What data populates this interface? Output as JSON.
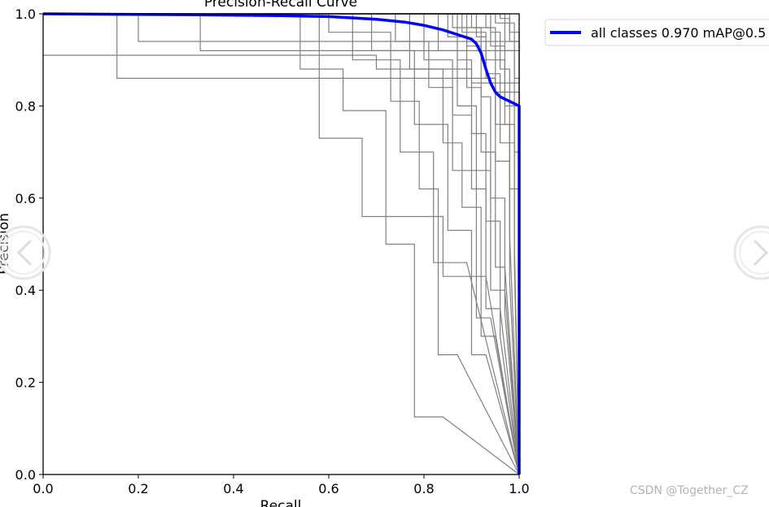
{
  "chart_data": {
    "type": "line",
    "title": "Precision-Recall Curve",
    "xlabel": "Recall",
    "ylabel": "Precision",
    "xlim": [
      0.0,
      1.0
    ],
    "ylim": [
      0.0,
      1.0
    ],
    "xticks": [
      "0.0",
      "0.2",
      "0.4",
      "0.6",
      "0.8",
      "1.0"
    ],
    "yticks": [
      "0.0",
      "0.2",
      "0.4",
      "0.6",
      "0.8",
      "1.0"
    ],
    "grid": false,
    "legend_position": "outside-top-right",
    "series": [
      {
        "name": "all classes 0.970 mAP@0.5",
        "color": "#0000ff",
        "x": [
          0.0,
          0.3,
          0.5,
          0.6,
          0.7,
          0.76,
          0.8,
          0.84,
          0.87,
          0.9,
          0.91,
          0.92,
          0.93,
          0.94,
          0.95,
          0.96,
          0.97,
          0.98,
          0.99,
          1.0,
          1.0
        ],
        "y": [
          1.0,
          0.998,
          0.996,
          0.994,
          0.988,
          0.982,
          0.975,
          0.965,
          0.955,
          0.945,
          0.935,
          0.915,
          0.88,
          0.85,
          0.83,
          0.82,
          0.815,
          0.81,
          0.805,
          0.8,
          0.0
        ]
      }
    ],
    "class_curves": {
      "color": "#808080",
      "curves": [
        {
          "steps": [
            [
              0.0,
              0.91
            ],
            [
              0.7,
              0.91
            ],
            [
              0.7,
              0.88
            ],
            [
              0.9,
              0.88
            ],
            [
              0.9,
              0.85
            ],
            [
              1.0,
              0.85
            ]
          ]
        },
        {
          "steps": [
            [
              0.0,
              1.0
            ],
            [
              0.155,
              1.0
            ],
            [
              0.155,
              0.86
            ],
            [
              0.95,
              0.86
            ],
            [
              0.95,
              0.83
            ],
            [
              1.0,
              0.83
            ]
          ]
        },
        {
          "steps": [
            [
              0.0,
              1.0
            ],
            [
              0.2,
              1.0
            ],
            [
              0.2,
              0.94
            ],
            [
              0.96,
              0.94
            ],
            [
              1.0,
              0.94
            ]
          ]
        },
        {
          "steps": [
            [
              0.0,
              1.0
            ],
            [
              0.33,
              1.0
            ],
            [
              0.33,
              0.92
            ],
            [
              0.97,
              0.92
            ],
            [
              1.0,
              0.92
            ]
          ]
        },
        {
          "steps": [
            [
              0.0,
              1.0
            ],
            [
              0.58,
              1.0
            ],
            [
              0.58,
              0.73
            ],
            [
              0.67,
              0.73
            ],
            [
              0.67,
              0.56
            ],
            [
              0.84,
              0.56
            ],
            [
              0.84,
              0.43
            ],
            [
              0.93,
              0.43
            ],
            [
              1.0,
              0.0
            ]
          ]
        },
        {
          "steps": [
            [
              0.0,
              1.0
            ],
            [
              0.54,
              1.0
            ],
            [
              0.54,
              0.88
            ],
            [
              0.63,
              0.88
            ],
            [
              0.63,
              0.79
            ],
            [
              0.72,
              0.79
            ],
            [
              0.72,
              0.5
            ],
            [
              0.78,
              0.5
            ],
            [
              0.78,
              0.125
            ],
            [
              0.84,
              0.125
            ],
            [
              1.0,
              0.0
            ]
          ]
        },
        {
          "steps": [
            [
              0.0,
              1.0
            ],
            [
              0.6,
              1.0
            ],
            [
              0.6,
              0.96
            ],
            [
              0.73,
              0.96
            ],
            [
              0.73,
              0.81
            ],
            [
              0.79,
              0.81
            ],
            [
              0.79,
              0.62
            ],
            [
              0.83,
              0.62
            ],
            [
              0.83,
              0.26
            ],
            [
              0.87,
              0.26
            ],
            [
              1.0,
              0.0
            ]
          ]
        },
        {
          "steps": [
            [
              0.0,
              1.0
            ],
            [
              0.65,
              1.0
            ],
            [
              0.65,
              0.9
            ],
            [
              0.75,
              0.9
            ],
            [
              0.75,
              0.7
            ],
            [
              0.82,
              0.7
            ],
            [
              0.82,
              0.46
            ],
            [
              0.89,
              0.46
            ],
            [
              1.0,
              0.0
            ]
          ]
        },
        {
          "steps": [
            [
              0.0,
              1.0
            ],
            [
              0.69,
              1.0
            ],
            [
              0.69,
              0.92
            ],
            [
              0.78,
              0.92
            ],
            [
              0.78,
              0.76
            ],
            [
              0.85,
              0.76
            ],
            [
              0.85,
              0.53
            ],
            [
              0.9,
              0.53
            ],
            [
              0.9,
              0.26
            ],
            [
              0.93,
              0.26
            ],
            [
              1.0,
              0.0
            ]
          ]
        },
        {
          "steps": [
            [
              0.0,
              1.0
            ],
            [
              0.74,
              1.0
            ],
            [
              0.74,
              0.94
            ],
            [
              0.81,
              0.94
            ],
            [
              0.81,
              0.84
            ],
            [
              0.86,
              0.84
            ],
            [
              0.86,
              0.66
            ],
            [
              0.91,
              0.66
            ],
            [
              0.91,
              0.34
            ],
            [
              0.94,
              0.34
            ],
            [
              1.0,
              0.0
            ]
          ]
        },
        {
          "steps": [
            [
              0.0,
              1.0
            ],
            [
              0.77,
              1.0
            ],
            [
              0.77,
              0.88
            ],
            [
              0.84,
              0.88
            ],
            [
              0.84,
              0.72
            ],
            [
              0.88,
              0.72
            ],
            [
              0.88,
              0.58
            ],
            [
              0.92,
              0.58
            ],
            [
              0.92,
              0.3
            ],
            [
              0.95,
              0.3
            ],
            [
              1.0,
              0.0
            ]
          ]
        },
        {
          "steps": [
            [
              0.0,
              1.0
            ],
            [
              0.8,
              1.0
            ],
            [
              0.8,
              0.9
            ],
            [
              0.86,
              0.9
            ],
            [
              0.86,
              0.78
            ],
            [
              0.9,
              0.78
            ],
            [
              0.9,
              0.62
            ],
            [
              0.93,
              0.62
            ],
            [
              0.93,
              0.36
            ],
            [
              0.96,
              0.36
            ],
            [
              1.0,
              0.0
            ]
          ]
        },
        {
          "steps": [
            [
              0.0,
              1.0
            ],
            [
              0.83,
              1.0
            ],
            [
              0.83,
              0.92
            ],
            [
              0.87,
              0.92
            ],
            [
              0.87,
              0.8
            ],
            [
              0.91,
              0.8
            ],
            [
              0.91,
              0.66
            ],
            [
              0.94,
              0.66
            ],
            [
              0.94,
              0.4
            ],
            [
              0.97,
              0.4
            ],
            [
              1.0,
              0.0
            ]
          ]
        },
        {
          "steps": [
            [
              0.0,
              1.0
            ],
            [
              0.85,
              1.0
            ],
            [
              0.85,
              0.95
            ],
            [
              0.89,
              0.95
            ],
            [
              0.89,
              0.84
            ],
            [
              0.92,
              0.84
            ],
            [
              0.92,
              0.7
            ],
            [
              0.95,
              0.7
            ],
            [
              0.95,
              0.45
            ],
            [
              0.97,
              0.45
            ],
            [
              1.0,
              0.0
            ]
          ]
        },
        {
          "steps": [
            [
              0.0,
              1.0
            ],
            [
              0.87,
              1.0
            ],
            [
              0.87,
              0.9
            ],
            [
              0.9,
              0.9
            ],
            [
              0.9,
              0.74
            ],
            [
              0.93,
              0.74
            ],
            [
              0.93,
              0.55
            ],
            [
              0.96,
              0.55
            ],
            [
              0.96,
              0.3
            ],
            [
              1.0,
              0.0
            ]
          ]
        },
        {
          "steps": [
            [
              0.0,
              1.0
            ],
            [
              0.89,
              1.0
            ],
            [
              0.89,
              0.93
            ],
            [
              0.92,
              0.93
            ],
            [
              0.92,
              0.82
            ],
            [
              0.94,
              0.82
            ],
            [
              0.94,
              0.6
            ],
            [
              0.97,
              0.6
            ],
            [
              0.97,
              0.35
            ],
            [
              1.0,
              0.0
            ]
          ]
        },
        {
          "steps": [
            [
              0.0,
              1.0
            ],
            [
              0.91,
              1.0
            ],
            [
              0.91,
              0.95
            ],
            [
              0.93,
              0.95
            ],
            [
              0.93,
              0.86
            ],
            [
              0.95,
              0.86
            ],
            [
              0.95,
              0.68
            ],
            [
              0.98,
              0.68
            ],
            [
              0.98,
              0.42
            ],
            [
              1.0,
              0.0
            ]
          ]
        },
        {
          "steps": [
            [
              0.0,
              1.0
            ],
            [
              0.93,
              1.0
            ],
            [
              0.93,
              0.97
            ],
            [
              0.95,
              0.97
            ],
            [
              0.95,
              0.9
            ],
            [
              0.97,
              0.9
            ],
            [
              0.97,
              0.76
            ],
            [
              0.99,
              0.76
            ],
            [
              0.99,
              0.5
            ],
            [
              1.0,
              0.0
            ]
          ]
        },
        {
          "steps": [
            [
              0.0,
              1.0
            ],
            [
              0.94,
              1.0
            ],
            [
              0.94,
              0.96
            ],
            [
              0.96,
              0.96
            ],
            [
              0.96,
              0.88
            ],
            [
              0.98,
              0.88
            ],
            [
              0.98,
              0.62
            ],
            [
              1.0,
              0.62
            ],
            [
              1.0,
              0.0
            ]
          ]
        },
        {
          "steps": [
            [
              0.0,
              1.0
            ],
            [
              0.95,
              1.0
            ],
            [
              0.95,
              0.98
            ],
            [
              0.97,
              0.98
            ],
            [
              0.97,
              0.92
            ],
            [
              0.99,
              0.92
            ],
            [
              0.99,
              0.7
            ],
            [
              1.0,
              0.7
            ],
            [
              1.0,
              0.0
            ]
          ]
        },
        {
          "steps": [
            [
              0.0,
              1.0
            ],
            [
              0.9,
              1.0
            ],
            [
              0.9,
              0.97
            ],
            [
              0.94,
              0.97
            ],
            [
              0.94,
              0.93
            ],
            [
              0.97,
              0.93
            ],
            [
              0.97,
              0.8
            ],
            [
              1.0,
              0.8
            ],
            [
              1.0,
              0.0
            ]
          ]
        },
        {
          "steps": [
            [
              0.0,
              1.0
            ],
            [
              0.88,
              1.0
            ],
            [
              0.88,
              0.96
            ],
            [
              0.93,
              0.96
            ],
            [
              0.93,
              0.87
            ],
            [
              0.96,
              0.87
            ],
            [
              0.96,
              0.72
            ],
            [
              0.99,
              0.72
            ],
            [
              0.99,
              0.46
            ],
            [
              1.0,
              0.0
            ]
          ]
        },
        {
          "steps": [
            [
              0.0,
              1.0
            ],
            [
              0.86,
              1.0
            ],
            [
              0.86,
              0.97
            ],
            [
              0.92,
              0.97
            ],
            [
              0.92,
              0.9
            ],
            [
              0.95,
              0.9
            ],
            [
              0.95,
              0.76
            ],
            [
              0.98,
              0.76
            ],
            [
              0.98,
              0.52
            ],
            [
              1.0,
              0.0
            ]
          ]
        },
        {
          "steps": [
            [
              0.0,
              1.0
            ],
            [
              0.96,
              1.0
            ],
            [
              0.96,
              0.99
            ],
            [
              0.98,
              0.99
            ],
            [
              0.98,
              0.94
            ],
            [
              1.0,
              0.94
            ],
            [
              1.0,
              0.0
            ]
          ]
        },
        {
          "steps": [
            [
              0.0,
              1.0
            ],
            [
              0.97,
              1.0
            ],
            [
              0.97,
              0.98
            ],
            [
              0.99,
              0.98
            ],
            [
              0.99,
              0.86
            ],
            [
              1.0,
              0.86
            ],
            [
              1.0,
              0.0
            ]
          ]
        },
        {
          "steps": [
            [
              0.0,
              1.0
            ],
            [
              0.98,
              1.0
            ],
            [
              0.98,
              0.96
            ],
            [
              1.0,
              0.96
            ],
            [
              1.0,
              0.0
            ]
          ]
        }
      ]
    }
  },
  "legend": {
    "label": "all classes 0.970 mAP@0.5",
    "color": "#0000ff"
  },
  "navigation": {
    "prev_icon": "chevron-left-icon",
    "next_icon": "chevron-right-icon"
  },
  "watermark": "CSDN @Together_CZ"
}
